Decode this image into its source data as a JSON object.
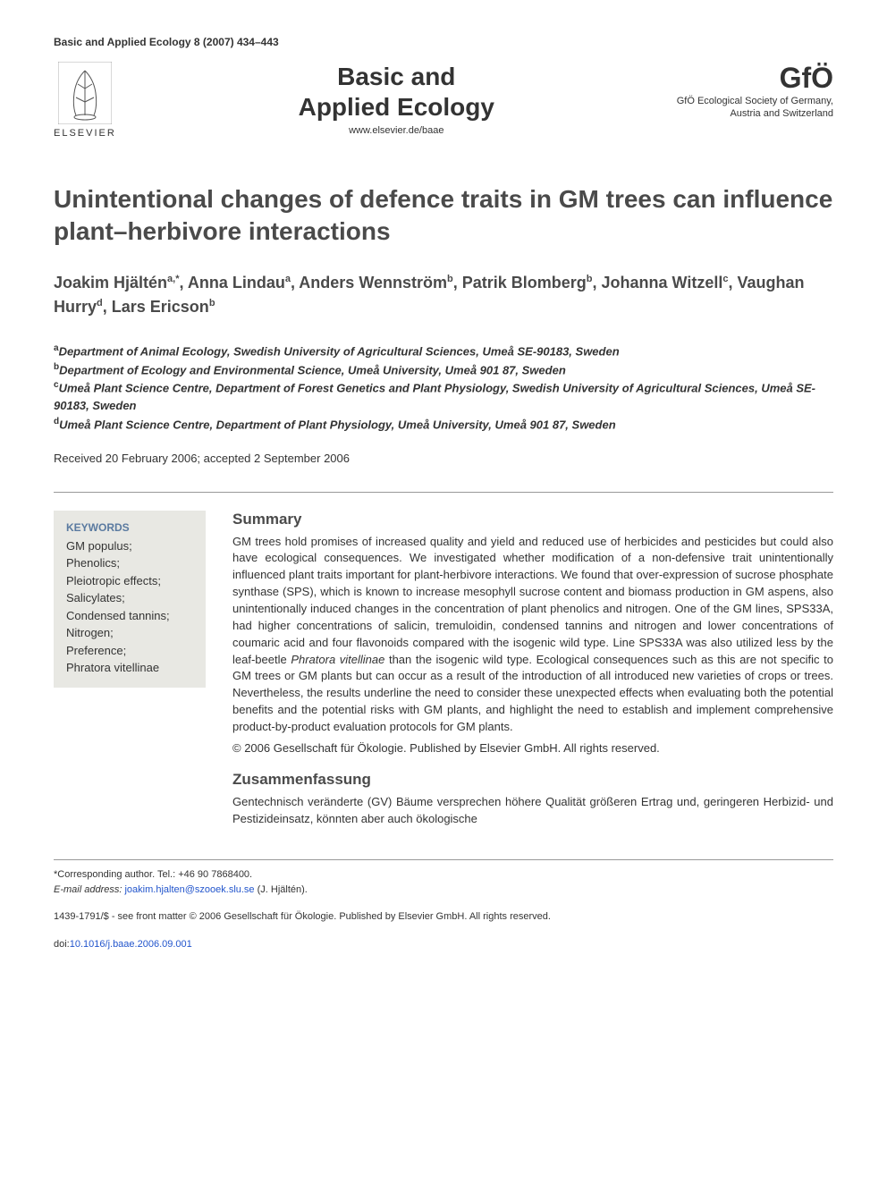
{
  "header_citation": "Basic and Applied Ecology 8 (2007) 434–443",
  "elsevier_label": "ELSEVIER",
  "journal_title_line1": "Basic and",
  "journal_title_line2": "Applied Ecology",
  "journal_url": "www.elsevier.de/baae",
  "gfo_logo": "GfÖ",
  "gfo_sub1": "GfÖ Ecological Society of Germany,",
  "gfo_sub2": "Austria and Switzerland",
  "article_title": "Unintentional changes of defence traits in GM trees can influence plant–herbivore interactions",
  "authors_html": "Joakim Hjältén<sup>a,*</sup>, Anna Lindau<sup>a</sup>, Anders Wennström<sup>b</sup>, Patrik Blomberg<sup>b</sup>, Johanna Witzell<sup>c</sup>, Vaughan Hurry<sup>d</sup>, Lars Ericson<sup>b</sup>",
  "affiliations": [
    {
      "sup": "a",
      "text": "Department of Animal Ecology, Swedish University of Agricultural Sciences, Umeå SE-90183, Sweden"
    },
    {
      "sup": "b",
      "text": "Department of Ecology and Environmental Science, Umeå University, Umeå 901 87, Sweden"
    },
    {
      "sup": "c",
      "text": "Umeå Plant Science Centre, Department of Forest Genetics and Plant Physiology, Swedish University of Agricultural Sciences, Umeå SE-90183, Sweden"
    },
    {
      "sup": "d",
      "text": "Umeå Plant Science Centre, Department of Plant Physiology, Umeå University, Umeå 901 87, Sweden"
    }
  ],
  "dates": "Received 20 February 2006; accepted 2 September 2006",
  "keywords_heading": "KEYWORDS",
  "keywords": [
    "GM populus;",
    "Phenolics;",
    "Pleiotropic effects;",
    "Salicylates;",
    "Condensed tannins;",
    "Nitrogen;",
    "Preference;",
    "Phratora vitellinae"
  ],
  "summary_heading": "Summary",
  "summary_text": "GM trees hold promises of increased quality and yield and reduced use of herbicides and pesticides but could also have ecological consequences. We investigated whether modification of a non-defensive trait unintentionally influenced plant traits important for plant-herbivore interactions. We found that over-expression of sucrose phosphate synthase (SPS), which is known to increase mesophyll sucrose content and biomass production in GM aspens, also unintentionally induced changes in the concentration of plant phenolics and nitrogen. One of the GM lines, SPS33A, had higher concentrations of salicin, tremuloidin, condensed tannins and nitrogen and lower concentrations of coumaric acid and four flavonoids compared with the isogenic wild type. Line SPS33A was also utilized less by the leaf-beetle Phratora vitellinae than the isogenic wild type. Ecological consequences such as this are not specific to GM trees or GM plants but can occur as a result of the introduction of all introduced new varieties of crops or trees. Nevertheless, the results underline the need to consider these unexpected effects when evaluating both the potential benefits and the potential risks with GM plants, and highlight the need to establish and implement comprehensive product-by-product evaluation protocols for GM plants.",
  "copyright": "© 2006 Gesellschaft für Ökologie. Published by Elsevier GmbH. All rights reserved.",
  "zf_heading": "Zusammenfassung",
  "zf_text": "Gentechnisch veränderte (GV) Bäume versprechen höhere Qualität größeren Ertrag und, geringeren Herbizid- und Pestizideinsatz, könnten aber auch ökologische",
  "corresponding_label": "*Corresponding author. Tel.: +46 90 7868400.",
  "email_label": "E-mail address:",
  "email": "joakim.hjalten@szooek.slu.se",
  "email_author": "(J. Hjältén).",
  "front_matter": "1439-1791/$ - see front matter © 2006 Gesellschaft für Ökologie. Published by Elsevier GmbH. All rights reserved.",
  "doi_label": "doi:",
  "doi": "10.1016/j.baae.2006.09.001",
  "colors": {
    "text": "#333333",
    "title": "#4a4a4a",
    "keywords_bg": "#e8e8e3",
    "keywords_heading": "#5a7aa0",
    "link": "#2255cc",
    "border": "#999999"
  }
}
